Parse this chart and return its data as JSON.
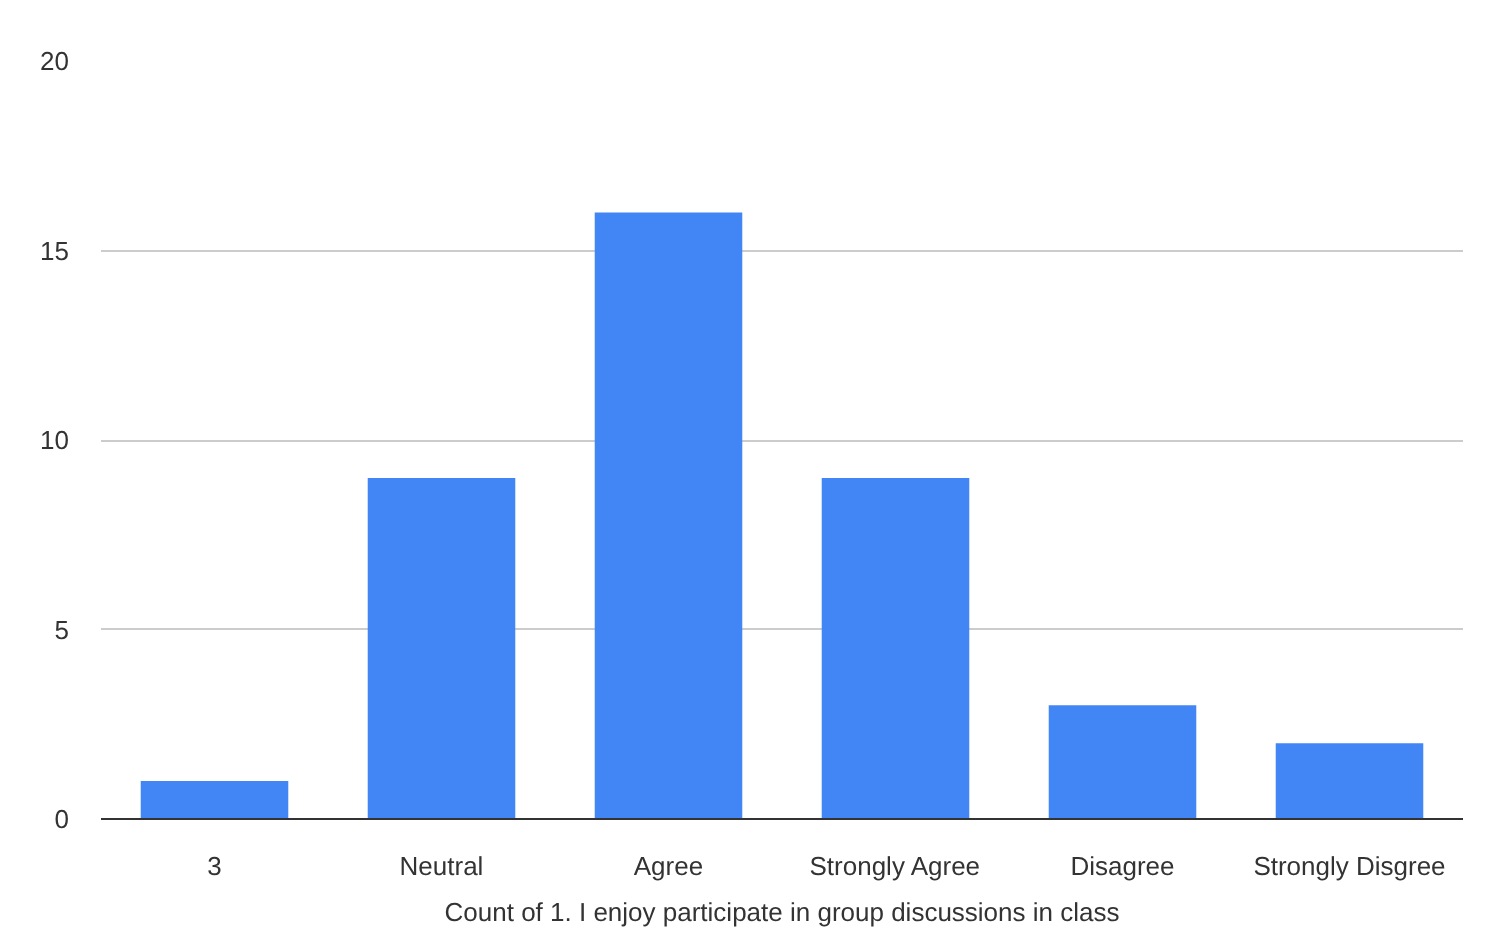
{
  "chart_data": {
    "type": "bar",
    "xlabel": "Count of 1. I enjoy participate in group discussions in class",
    "categories": [
      "3",
      "Neutral",
      "Agree",
      "Strongly Agree",
      "Disagree",
      "Strongly Disgree"
    ],
    "values": [
      1,
      9,
      16,
      9,
      3,
      2
    ],
    "color": "#4285f4",
    "ylim": [
      0,
      20
    ],
    "yticks": [
      0,
      5,
      10,
      15,
      20
    ],
    "grid": "y"
  }
}
